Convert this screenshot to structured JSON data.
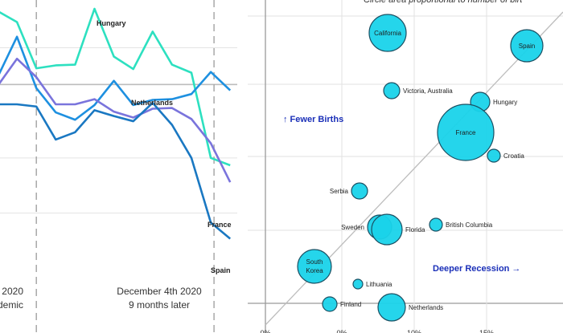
{
  "chart_data": [
    {
      "type": "line",
      "x": [
        0,
        1,
        2,
        3,
        4,
        5,
        6,
        7,
        8,
        9,
        10,
        11,
        12
      ],
      "ylim": [
        -2.4,
        1.15
      ],
      "zero_line": 0,
      "grid": "horizontal",
      "series": [
        {
          "name": "Hungary",
          "color": "#2de0c0",
          "values": [
            1.0,
            0.85,
            0.22,
            0.26,
            0.27,
            1.03,
            0.38,
            0.21,
            0.72,
            0.27,
            0.16,
            -1.0,
            -1.1
          ]
        },
        {
          "name": "Netherlands",
          "color": "#1e90e0",
          "values": [
            0.1,
            0.65,
            -0.05,
            -0.38,
            -0.48,
            -0.28,
            0.05,
            -0.28,
            -0.21,
            -0.2,
            -0.13,
            0.17,
            -0.08
          ]
        },
        {
          "name": "France",
          "color": "#7a74dc",
          "values": [
            -0.02,
            0.35,
            0.1,
            -0.27,
            -0.27,
            -0.2,
            -0.37,
            -0.45,
            -0.33,
            -0.32,
            -0.47,
            -0.8,
            -1.33
          ]
        },
        {
          "name": "Spain",
          "color": "#1a78c2",
          "values": [
            -0.27,
            -0.27,
            -0.3,
            -0.75,
            -0.65,
            -0.35,
            -0.43,
            -0.5,
            -0.25,
            -0.55,
            -1.0,
            -1.88,
            -2.1
          ]
        }
      ],
      "vlines": [
        {
          "x": 2.0,
          "label1": "2020",
          "label2": "demic"
        },
        {
          "x": 11.0,
          "label1": "December 4th 2020",
          "label2": "9 months later"
        }
      ]
    },
    {
      "type": "scatter",
      "subtitle": "Circle area proportional to number of birt",
      "x_ticks": [
        "0%",
        "0%",
        "10%",
        "15%"
      ],
      "xlim": [
        -1,
        19
      ],
      "ylim": [
        -4.3,
        16.9
      ],
      "diagonal": true,
      "annotations": [
        {
          "text": "↑ Fewer Births",
          "color": "#1a2fb8"
        },
        {
          "text": "Deeper Recession →",
          "color": "#1a2fb8"
        }
      ],
      "points": [
        {
          "name": "California",
          "x": 7.6,
          "y": 15.3,
          "r": 23,
          "label_pos": "inside"
        },
        {
          "name": "Spain",
          "x": 17.0,
          "y": 14.0,
          "r": 20,
          "label_pos": "inside"
        },
        {
          "name": "Victoria, Australia",
          "x": 7.9,
          "y": 10.9,
          "r": 10,
          "label_pos": "right"
        },
        {
          "name": "Hungary",
          "x": 13.7,
          "y": 9.8,
          "r": 12,
          "label_pos": "right"
        },
        {
          "name": "France",
          "x": 12.5,
          "y": 7.2,
          "r": 35,
          "label_pos": "inside"
        },
        {
          "name": "Croatia",
          "x": 14.7,
          "y": 5.5,
          "r": 8,
          "label_pos": "right"
        },
        {
          "name": "Serbia",
          "x": 5.8,
          "y": 3.8,
          "r": 10,
          "label_pos": "left"
        },
        {
          "name": "British Columbia",
          "x": 10.9,
          "y": 1.8,
          "r": 8,
          "label_pos": "right"
        },
        {
          "name": "Sweden",
          "x": 7.0,
          "y": 1.7,
          "r": 15,
          "label_pos": "left"
        },
        {
          "name": "Florida",
          "x": 7.6,
          "y": 1.5,
          "r": 19,
          "label_pos": "right"
        },
        {
          "name": "South Korea",
          "x": 2.0,
          "y": -1.5,
          "r": 21,
          "label_pos": "inside"
        },
        {
          "name": "Lithuania",
          "x": 5.7,
          "y": -3.0,
          "r": 6,
          "label_pos": "right"
        },
        {
          "name": "Finland",
          "x": 3.8,
          "y": -4.2,
          "r": 9,
          "label_pos": "right"
        },
        {
          "name": "Netherlands",
          "x": 7.9,
          "y": -4.4,
          "r": 17,
          "label_pos": "right"
        }
      ]
    }
  ]
}
